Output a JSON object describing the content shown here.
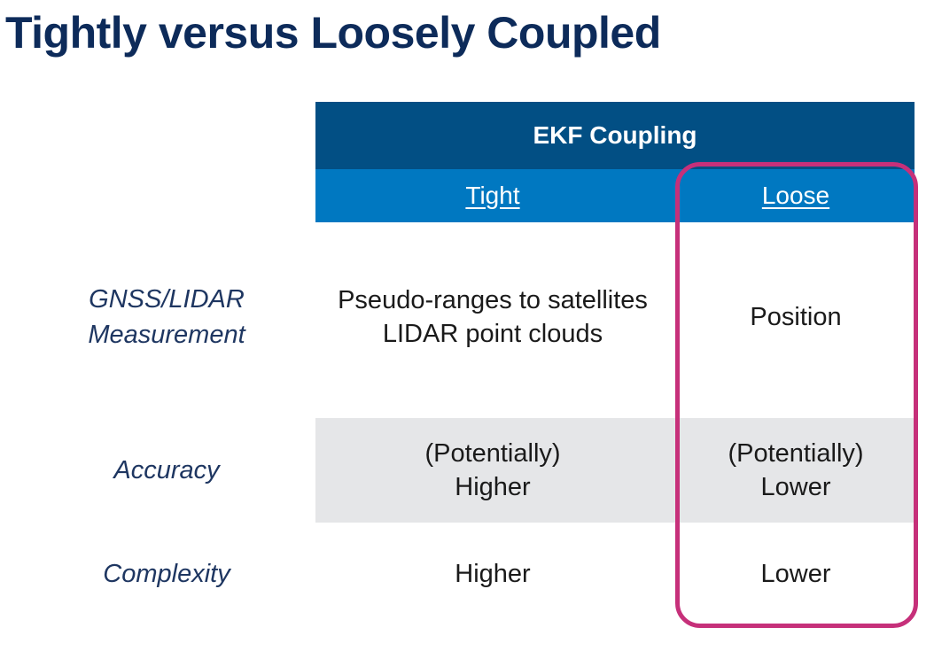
{
  "title": "Tightly versus Loosely Coupled",
  "table": {
    "group_header": "EKF Coupling",
    "columns": [
      "Tight",
      "Loose"
    ],
    "rows": [
      {
        "label_lines": [
          "GNSS/LIDAR",
          "Measurement"
        ],
        "tight_lines": [
          "Pseudo-ranges to satellites",
          "LIDAR point clouds"
        ],
        "loose_lines": [
          "Position"
        ]
      },
      {
        "label_lines": [
          "Accuracy"
        ],
        "tight_lines": [
          "(Potentially)",
          "Higher"
        ],
        "loose_lines": [
          "(Potentially)",
          "Lower"
        ]
      },
      {
        "label_lines": [
          "Complexity"
        ],
        "tight_lines": [
          "Higher"
        ],
        "loose_lines": [
          "Lower"
        ]
      }
    ]
  },
  "colors": {
    "title": "#0d2b5a",
    "header_dark": "#024f84",
    "header_light": "#0078c1",
    "shaded_row": "#e5e6e8",
    "highlight_border": "#c6307a"
  }
}
